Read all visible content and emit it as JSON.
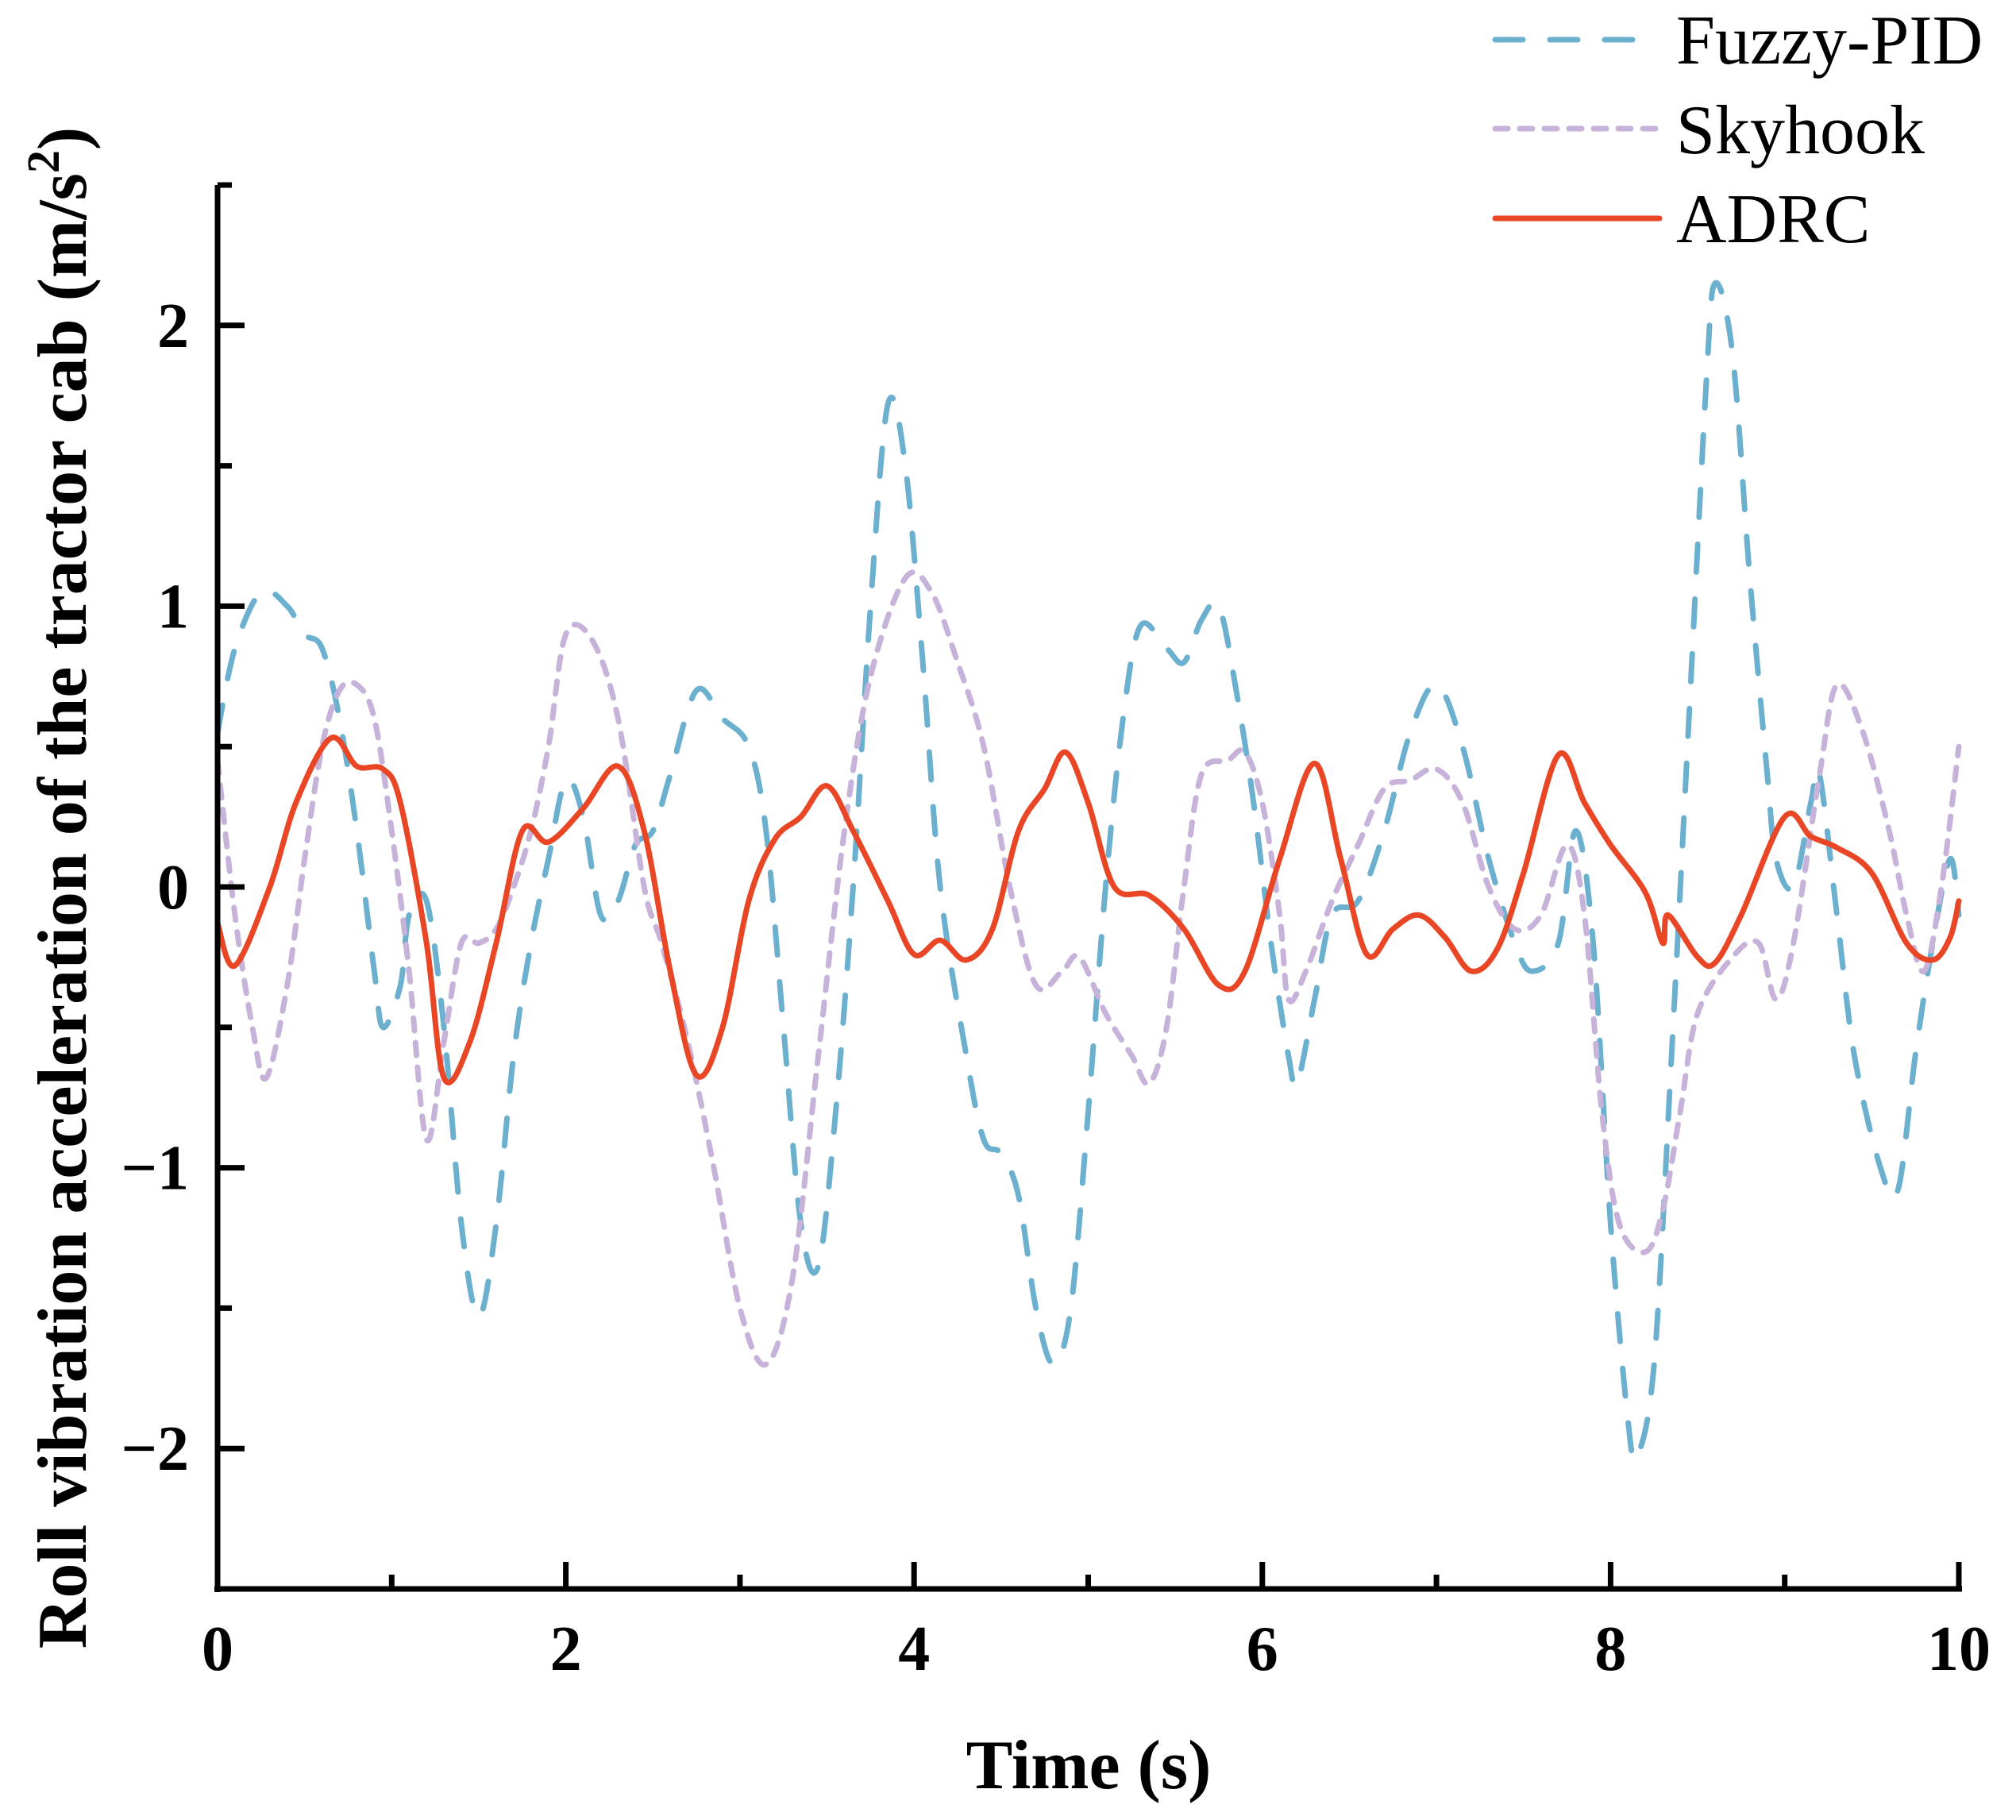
{
  "chart_data": {
    "type": "line",
    "title": "",
    "xlabel": "Time (s)",
    "ylabel": "Roll vibration acceleration of the tractor cab (m/s²)",
    "ylabel_main": "Roll vibration acceleration of the tractor cab (m/s",
    "ylabel_sup": "2",
    "ylabel_close": ")",
    "xlim": [
      0,
      10
    ],
    "ylim": [
      -2.5,
      2.5
    ],
    "x_ticks": [
      0,
      2,
      4,
      6,
      8,
      10
    ],
    "x_tick_labels": [
      "0",
      "2",
      "4",
      "6",
      "8",
      "10"
    ],
    "x_minor_ticks": [
      1,
      3,
      5,
      7,
      9
    ],
    "y_ticks": [
      -2,
      -1,
      0,
      1,
      2
    ],
    "y_tick_labels": [
      "−2",
      "−1",
      "0",
      "1",
      "2"
    ],
    "y_minor_ticks": [
      -2.5,
      -1.5,
      -0.5,
      0.5,
      1.5,
      2.5
    ],
    "grid": false,
    "legend_position": "top-right",
    "series": [
      {
        "name": "Fuzzy-PID",
        "color": "#6cb0cf",
        "style": "dashed",
        "x": [
          0,
          0.1,
          0.25,
          0.4,
          0.5,
          0.6,
          0.7,
          0.8,
          0.9,
          0.95,
          1.05,
          1.1,
          1.2,
          1.3,
          1.4,
          1.5,
          1.6,
          1.7,
          1.8,
          1.9,
          2.0,
          2.1,
          2.2,
          2.3,
          2.4,
          2.5,
          2.6,
          2.75,
          2.9,
          3.05,
          3.15,
          3.25,
          3.35,
          3.45,
          3.55,
          3.65,
          3.75,
          3.85,
          3.95,
          4.05,
          4.15,
          4.3,
          4.4,
          4.5,
          4.6,
          4.7,
          4.8,
          4.9,
          5.0,
          5.1,
          5.2,
          5.3,
          5.45,
          5.55,
          5.65,
          5.75,
          5.85,
          5.95,
          6.05,
          6.15,
          6.2,
          6.3,
          6.4,
          6.55,
          6.7,
          6.85,
          7.0,
          7.15,
          7.3,
          7.45,
          7.55,
          7.7,
          7.8,
          7.9,
          8.0,
          8.1,
          8.15,
          8.25,
          8.35,
          8.45,
          8.55,
          8.6,
          8.7,
          8.8,
          8.9,
          8.95,
          9.05,
          9.15,
          9.2,
          9.3,
          9.4,
          9.55,
          9.65,
          9.75,
          9.85,
          9.95,
          10.0
        ],
        "y": [
          0.55,
          0.85,
          1.05,
          1.0,
          0.9,
          0.85,
          0.6,
          0.2,
          -0.3,
          -0.5,
          -0.35,
          -0.1,
          -0.05,
          -0.5,
          -1.2,
          -1.53,
          -1.2,
          -0.6,
          -0.2,
          0.1,
          0.38,
          0.25,
          -0.1,
          -0.05,
          0.15,
          0.2,
          0.4,
          0.7,
          0.6,
          0.5,
          0.2,
          -0.5,
          -1.2,
          -1.35,
          -0.8,
          0.0,
          1.0,
          1.72,
          1.5,
          0.8,
          0.0,
          -0.6,
          -0.9,
          -0.95,
          -1.1,
          -1.5,
          -1.7,
          -1.5,
          -0.8,
          0.0,
          0.6,
          0.93,
          0.85,
          0.8,
          0.95,
          1.0,
          0.7,
          0.3,
          -0.2,
          -0.6,
          -0.7,
          -0.4,
          -0.1,
          -0.05,
          0.2,
          0.55,
          0.72,
          0.5,
          0.1,
          -0.2,
          -0.3,
          -0.2,
          0.2,
          -0.2,
          -1.2,
          -1.9,
          -2.03,
          -1.7,
          -0.6,
          0.6,
          1.8,
          2.15,
          1.9,
          1.1,
          0.4,
          0.1,
          0.0,
          0.3,
          0.4,
          -0.1,
          -0.6,
          -1.0,
          -1.08,
          -0.6,
          -0.2,
          0.1,
          -0.1
        ]
      },
      {
        "name": "Skyhook",
        "color": "#c7b3da",
        "style": "dotted",
        "x": [
          0,
          0.1,
          0.2,
          0.28,
          0.4,
          0.5,
          0.6,
          0.7,
          0.8,
          0.9,
          1.0,
          1.1,
          1.2,
          1.3,
          1.4,
          1.5,
          1.6,
          1.7,
          1.8,
          1.9,
          2.0,
          2.15,
          2.3,
          2.45,
          2.55,
          2.7,
          2.85,
          3.0,
          3.15,
          3.3,
          3.45,
          3.6,
          3.75,
          3.95,
          4.1,
          4.25,
          4.4,
          4.55,
          4.7,
          4.85,
          4.95,
          5.1,
          5.25,
          5.35,
          5.45,
          5.55,
          5.65,
          5.8,
          5.9,
          6.0,
          6.1,
          6.15,
          6.25,
          6.4,
          6.55,
          6.7,
          6.85,
          7.0,
          7.15,
          7.3,
          7.45,
          7.6,
          7.75,
          7.85,
          7.95,
          8.05,
          8.2,
          8.3,
          8.4,
          8.5,
          8.7,
          8.85,
          8.95,
          9.05,
          9.2,
          9.3,
          9.45,
          9.6,
          9.7,
          9.8,
          9.9,
          10.0
        ],
        "y": [
          0.45,
          -0.1,
          -0.5,
          -0.68,
          -0.35,
          0.1,
          0.5,
          0.7,
          0.72,
          0.6,
          0.2,
          -0.3,
          -0.9,
          -0.55,
          -0.2,
          -0.2,
          -0.15,
          0.0,
          0.2,
          0.5,
          0.9,
          0.88,
          0.6,
          0.0,
          -0.2,
          -0.55,
          -1.0,
          -1.5,
          -1.7,
          -1.4,
          -0.6,
          0.2,
          0.75,
          1.1,
          1.05,
          0.8,
          0.5,
          0.0,
          -0.35,
          -0.3,
          -0.25,
          -0.45,
          -0.6,
          -0.7,
          -0.5,
          0.0,
          0.4,
          0.45,
          0.48,
          0.3,
          -0.1,
          -0.4,
          -0.3,
          -0.05,
          0.15,
          0.35,
          0.38,
          0.42,
          0.3,
          0.0,
          -0.15,
          -0.1,
          0.15,
          -0.1,
          -0.8,
          -1.2,
          -1.3,
          -1.15,
          -0.8,
          -0.45,
          -0.25,
          -0.2,
          -0.4,
          -0.2,
          0.4,
          0.72,
          0.55,
          0.2,
          -0.1,
          -0.3,
          0.0,
          0.5
        ]
      },
      {
        "name": "ADRC",
        "color": "#e84625",
        "style": "solid",
        "x": [
          0,
          0.1,
          0.3,
          0.45,
          0.65,
          0.8,
          0.95,
          1.05,
          1.2,
          1.3,
          1.45,
          1.6,
          1.75,
          1.9,
          2.1,
          2.3,
          2.45,
          2.6,
          2.75,
          2.9,
          3.05,
          3.2,
          3.35,
          3.5,
          3.65,
          3.85,
          4.0,
          4.15,
          4.3,
          4.45,
          4.6,
          4.75,
          4.87,
          5.0,
          5.15,
          5.35,
          5.55,
          5.75,
          5.9,
          6.1,
          6.3,
          6.45,
          6.6,
          6.75,
          6.9,
          7.05,
          7.2,
          7.35,
          7.5,
          7.7,
          7.85,
          8.0,
          8.2,
          8.3,
          8.33,
          8.5,
          8.6,
          8.75,
          9.0,
          9.15,
          9.3,
          9.5,
          9.7,
          9.85,
          9.95,
          10.0
        ],
        "y": [
          -0.13,
          -0.28,
          0.0,
          0.3,
          0.53,
          0.43,
          0.42,
          0.3,
          -0.2,
          -0.68,
          -0.55,
          -0.2,
          0.2,
          0.16,
          0.28,
          0.43,
          0.2,
          -0.3,
          -0.67,
          -0.5,
          -0.05,
          0.17,
          0.25,
          0.36,
          0.2,
          -0.05,
          -0.24,
          -0.19,
          -0.26,
          -0.15,
          0.2,
          0.35,
          0.48,
          0.3,
          0.0,
          -0.03,
          -0.15,
          -0.35,
          -0.3,
          0.1,
          0.44,
          0.1,
          -0.24,
          -0.15,
          -0.1,
          -0.18,
          -0.3,
          -0.22,
          0.05,
          0.47,
          0.3,
          0.15,
          -0.02,
          -0.2,
          -0.1,
          -0.25,
          -0.27,
          -0.1,
          0.25,
          0.18,
          0.14,
          0.05,
          -0.2,
          -0.26,
          -0.18,
          -0.05
        ]
      }
    ]
  }
}
